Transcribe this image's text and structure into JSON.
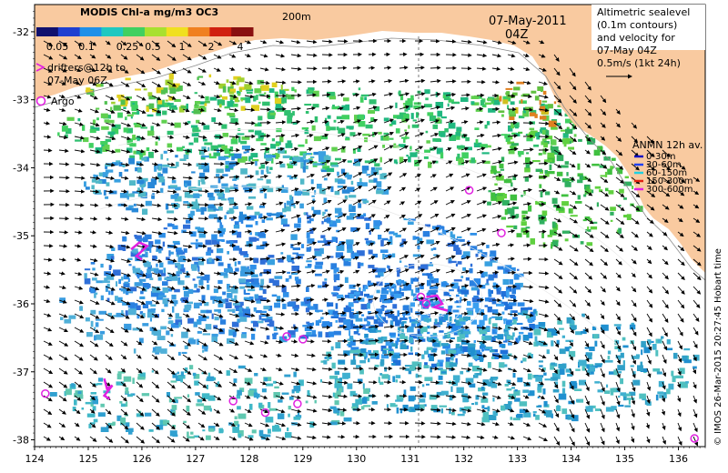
{
  "colorbar": {
    "title": "MODIS Chl-a mg/m3 OC3",
    "tick_labels": [
      "0.05",
      "0.1",
      "0.25",
      "0.5",
      "1",
      "2",
      "4"
    ],
    "colors": [
      "#10106e",
      "#1f3fd0",
      "#1f90e8",
      "#20c8c0",
      "#40d060",
      "#a8e030",
      "#f0e020",
      "#f08020",
      "#d02010",
      "#8a1010"
    ]
  },
  "isobath_label": "200m",
  "date": "07-May-2011",
  "time": "04Z",
  "drifters": {
    "line1": "drifters@12h to",
    "line2": "07-May 06Z",
    "color": "#e020e0"
  },
  "argo": {
    "label": "Argo",
    "color": "#e020e0"
  },
  "altimetry": {
    "line1": "Altimetric sealevel",
    "line2": "(0.1m contours)",
    "line3": "and velocity for",
    "line4": "07-May 04Z",
    "scale_label": "0.5m/s (1kt 24h)"
  },
  "anmn": {
    "title": "ANMN 12h av.",
    "items": [
      {
        "label": "0-30m",
        "color": "#1010c0"
      },
      {
        "label": "30-60m",
        "color": "#2040f0"
      },
      {
        "label": "60-150m",
        "color": "#20d0e0"
      },
      {
        "label": "150-300m",
        "color": "#e02010"
      },
      {
        "label": "300-600m",
        "color": "#e020e0"
      }
    ]
  },
  "credit": "© IMOS 26-Mar-2015 20:27:45 Hobart time",
  "x_axis": {
    "range": [
      124,
      136.5
    ],
    "ticks": [
      "124",
      "125",
      "126",
      "127",
      "128",
      "129",
      "130",
      "131",
      "132",
      "133",
      "134",
      "135",
      "136"
    ]
  },
  "y_axis": {
    "range": [
      -38.1,
      -31.6
    ],
    "ticks": [
      "-32",
      "-33",
      "-34",
      "-35",
      "-36",
      "-37",
      "-38"
    ]
  },
  "land_color": "#f9caa0",
  "argo_floats": [
    {
      "lon": 124.2,
      "lat": -37.32
    },
    {
      "lon": 127.7,
      "lat": -37.43
    },
    {
      "lon": 128.7,
      "lat": -36.48
    },
    {
      "lon": 129.0,
      "lat": -36.52
    },
    {
      "lon": 128.3,
      "lat": -37.6
    },
    {
      "lon": 128.9,
      "lat": -37.47
    },
    {
      "lon": 131.2,
      "lat": -35.9
    },
    {
      "lon": 131.3,
      "lat": -36.0
    },
    {
      "lon": 132.7,
      "lat": -34.96
    },
    {
      "lon": 132.1,
      "lat": -34.33
    },
    {
      "lon": 136.3,
      "lat": -37.98
    }
  ],
  "drifter_tracks": [
    [
      [
        125.8,
        -35.2
      ],
      [
        125.95,
        -35.1
      ],
      [
        126.1,
        -35.15
      ],
      [
        125.9,
        -35.3
      ],
      [
        126.0,
        -35.35
      ]
    ],
    [
      [
        125.3,
        -37.1
      ],
      [
        125.35,
        -37.25
      ],
      [
        125.45,
        -37.2
      ],
      [
        125.3,
        -37.35
      ],
      [
        125.4,
        -37.4
      ]
    ],
    [
      [
        131.3,
        -35.9
      ],
      [
        131.5,
        -35.88
      ],
      [
        131.6,
        -36.0
      ],
      [
        131.45,
        -36.05
      ],
      [
        131.7,
        -36.1
      ]
    ]
  ]
}
